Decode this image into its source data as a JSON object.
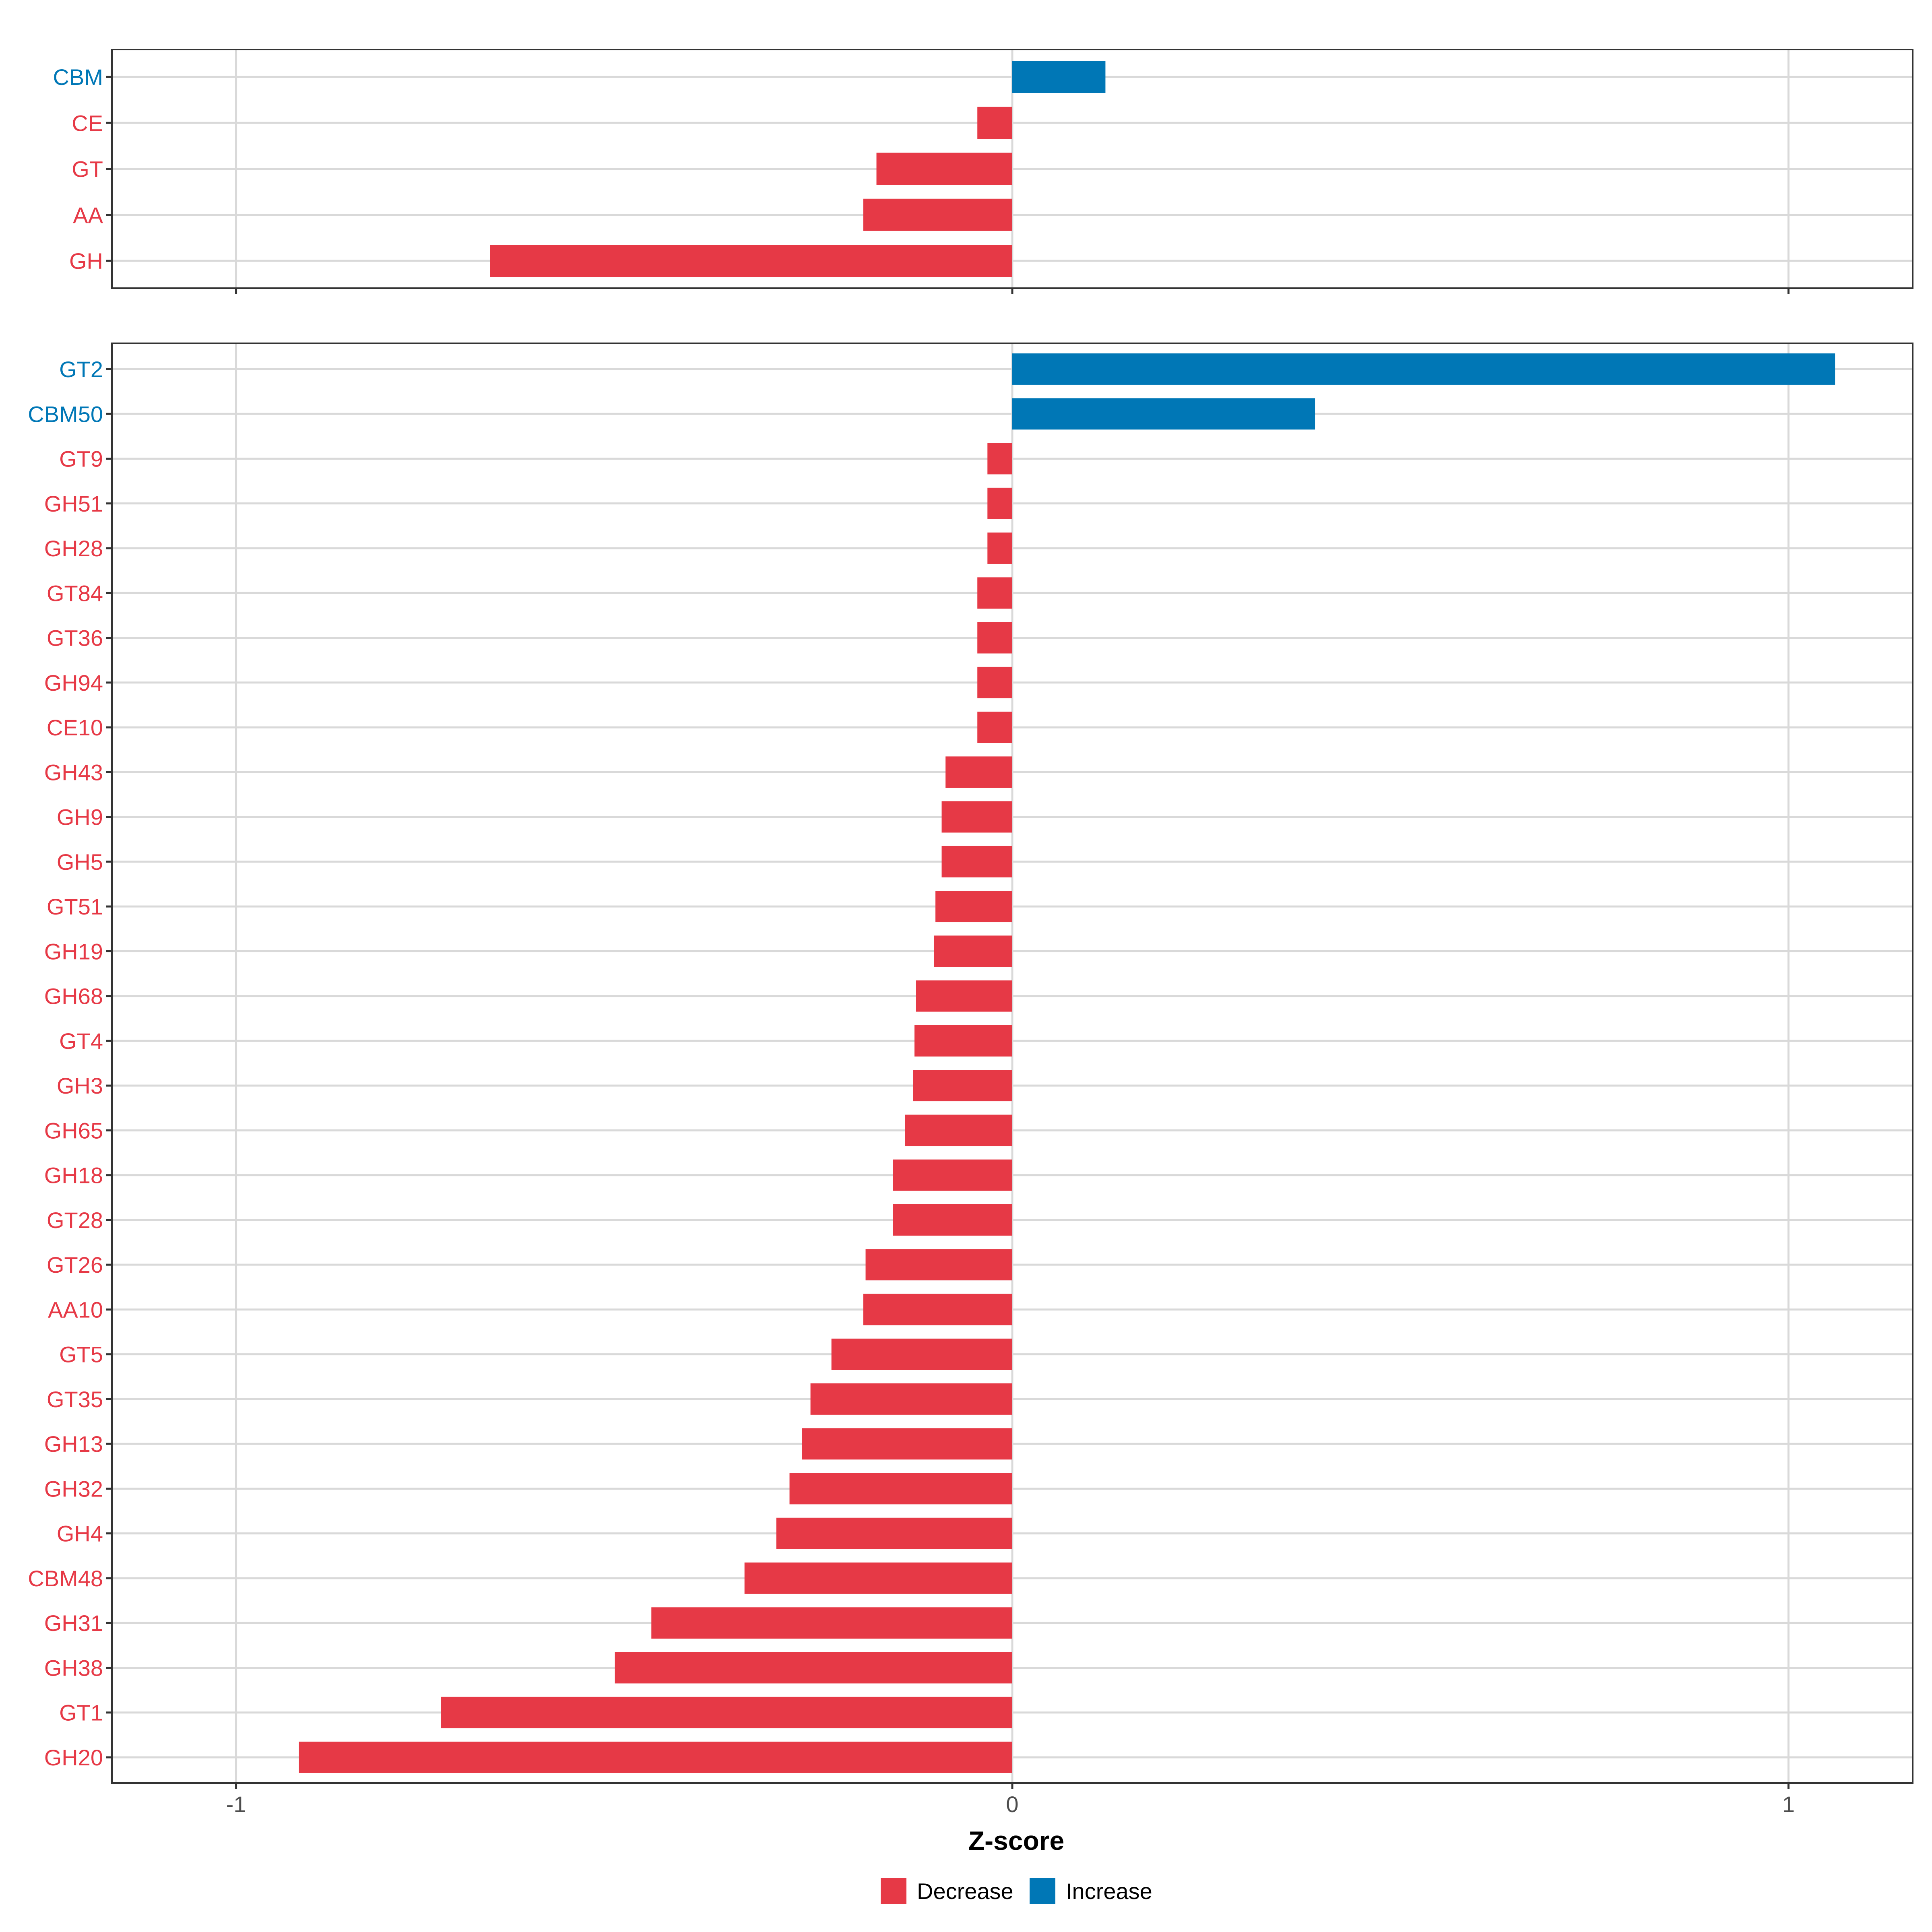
{
  "colors": {
    "decrease": "#E63946",
    "increase": "#0077B6",
    "grid": "#D9D9D9",
    "axis_text": "#4D4D4D",
    "frame": "#333333"
  },
  "chart_data": [
    {
      "type": "bar",
      "orientation": "horizontal",
      "panel": "top",
      "categories": [
        "CBM",
        "CE",
        "GT",
        "AA",
        "GH"
      ],
      "values": [
        0.12,
        -0.045,
        -0.175,
        -0.192,
        -0.673
      ],
      "xlim": [
        -1.16,
        1.16
      ],
      "xticks": [
        -1,
        0,
        1
      ]
    },
    {
      "type": "bar",
      "orientation": "horizontal",
      "panel": "bottom",
      "categories": [
        "GT2",
        "CBM50",
        "GT9",
        "GH51",
        "GH28",
        "GT84",
        "GT36",
        "GH94",
        "CE10",
        "GH43",
        "GH9",
        "GH5",
        "GT51",
        "GH19",
        "GH68",
        "GT4",
        "GH3",
        "GH65",
        "GH18",
        "GT28",
        "GT26",
        "AA10",
        "GT5",
        "GT35",
        "GH13",
        "GH32",
        "GH4",
        "CBM48",
        "GH31",
        "GH38",
        "GT1",
        "GH20"
      ],
      "values": [
        1.06,
        0.39,
        -0.032,
        -0.032,
        -0.032,
        -0.045,
        -0.045,
        -0.045,
        -0.045,
        -0.086,
        -0.091,
        -0.091,
        -0.099,
        -0.101,
        -0.124,
        -0.126,
        -0.128,
        -0.138,
        -0.154,
        -0.154,
        -0.189,
        -0.192,
        -0.233,
        -0.26,
        -0.271,
        -0.287,
        -0.304,
        -0.345,
        -0.465,
        -0.512,
        -0.736,
        -0.919
      ],
      "xlim": [
        -1.16,
        1.16
      ],
      "xticks": [
        -1,
        0,
        1
      ],
      "tick_labels": [
        "-1",
        "0",
        "1"
      ],
      "xlabel": "Z-score",
      "ylabel": ""
    }
  ],
  "legend": {
    "placement": "bottom",
    "items": [
      {
        "label": "Decrease",
        "key": "decrease"
      },
      {
        "label": "Increase",
        "key": "increase"
      }
    ]
  }
}
